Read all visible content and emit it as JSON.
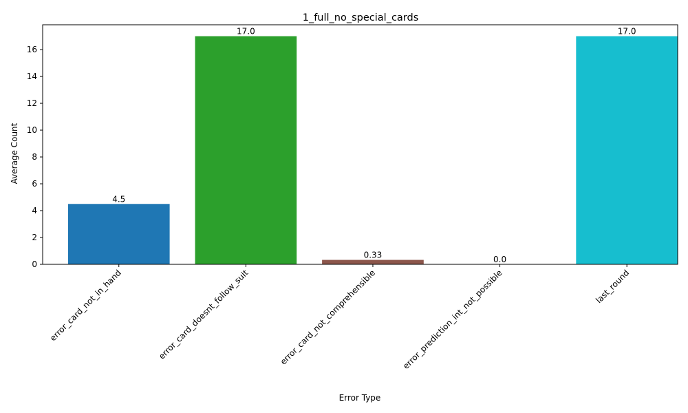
{
  "chart_data": {
    "type": "bar",
    "title": "1_full_no_special_cards",
    "xlabel": "Error Type",
    "ylabel": "Average Count",
    "categories": [
      "error_card_not_in_hand",
      "error_card_doesnt_follow_suit",
      "error_card_not_comprehensible",
      "error_prediction_int_not_possible",
      "last_round"
    ],
    "values": [
      4.5,
      17.0,
      0.33,
      0.0,
      17.0
    ],
    "value_labels": [
      "4.5",
      "17.0",
      "0.33",
      "0.0",
      "17.0"
    ],
    "colors": [
      "#1f77b4",
      "#2ca02c",
      "#8c564b",
      "#e377c2",
      "#17becf"
    ],
    "ylim": [
      0,
      17.85
    ],
    "yticks": [
      0,
      2,
      4,
      6,
      8,
      10,
      12,
      14,
      16
    ],
    "grid": false,
    "legend": "none"
  }
}
